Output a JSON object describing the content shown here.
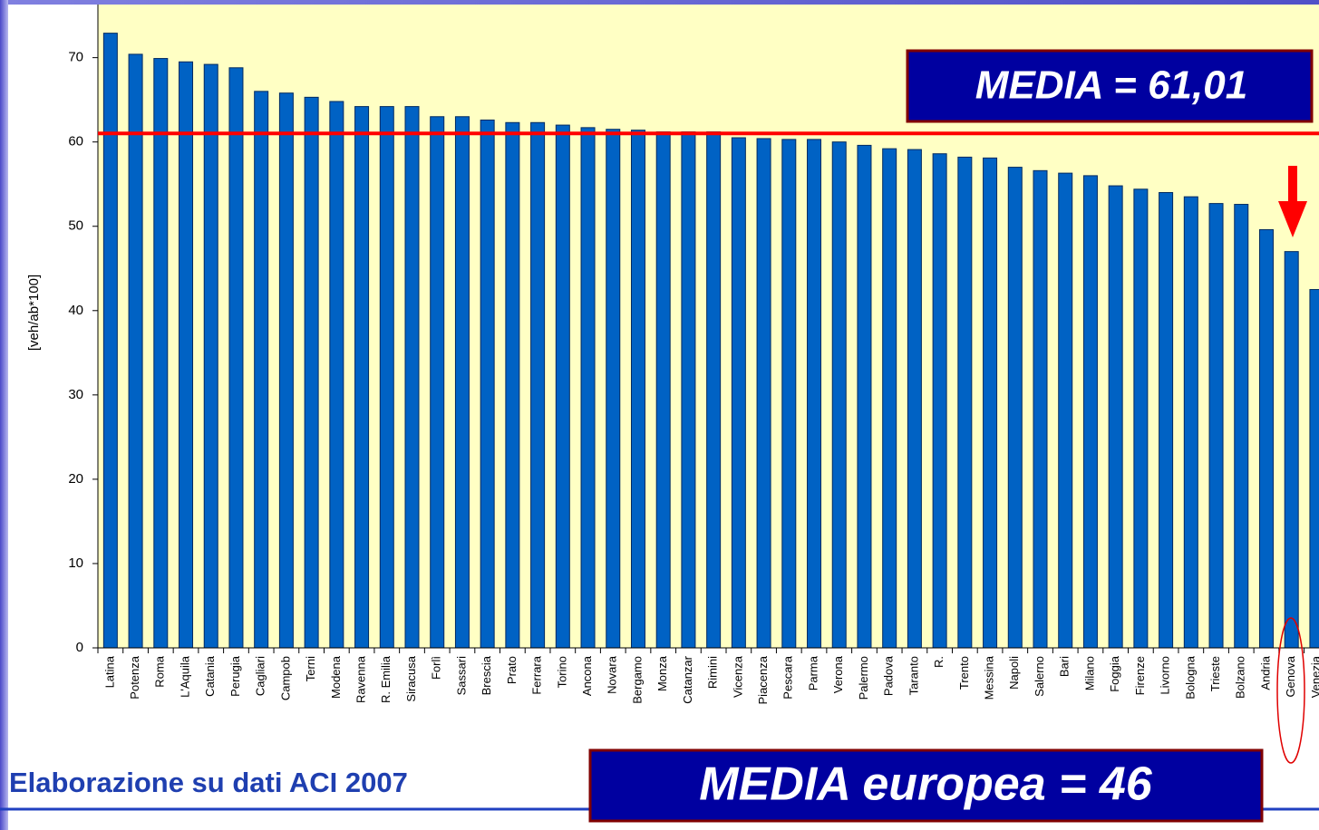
{
  "chart_data": {
    "type": "bar",
    "y_label": "[veh/ab*100]",
    "categories": [
      "Latina",
      "Potenza",
      "Roma",
      "L'Aquila",
      "Catania",
      "Perugia",
      "Cagliari",
      "Campob",
      "Terni",
      "Modena",
      "Ravenna",
      "R. Emilia",
      "Siracusa",
      "Forlì",
      "Sassari",
      "Brescia",
      "Prato",
      "Ferrara",
      "Torino",
      "Ancona",
      "Novara",
      "Bergamo",
      "Monza",
      "Catanzar",
      "Rimini",
      "Vicenza",
      "Piacenza",
      "Pescara",
      "Parma",
      "Verona",
      "Palermo",
      "Padova",
      "Taranto",
      "R.",
      "Trento",
      "Messina",
      "Napoli",
      "Salerno",
      "Bari",
      "Milano",
      "Foggia",
      "Firenze",
      "Livorno",
      "Bologna",
      "Trieste",
      "Bolzano",
      "Andria",
      "Genova",
      "Venezia"
    ],
    "values": [
      72.9,
      70.4,
      69.9,
      69.5,
      69.2,
      68.8,
      66.0,
      65.8,
      65.3,
      64.8,
      64.2,
      64.2,
      64.2,
      63.0,
      63.0,
      62.6,
      62.3,
      62.3,
      62.0,
      61.7,
      61.5,
      61.4,
      61.2,
      61.2,
      61.2,
      60.5,
      60.4,
      60.3,
      60.3,
      60.0,
      59.6,
      59.2,
      59.1,
      58.6,
      58.2,
      58.1,
      57.0,
      56.6,
      56.3,
      56.0,
      54.8,
      54.4,
      54.0,
      53.5,
      52.7,
      52.6,
      49.6,
      47.0,
      42.5
    ],
    "color": "#0062c4",
    "ylim": [
      0,
      76.3
    ],
    "yticks": [
      0,
      10,
      20,
      30,
      40,
      50,
      60,
      70
    ],
    "grid": false,
    "reference_line": {
      "value": 61.01,
      "label": "MEDIA = 61,01",
      "color": "#ff0000"
    },
    "annotation": "MEDIA europea = 46",
    "source": "Elaborazione su dati ACI 2007"
  }
}
